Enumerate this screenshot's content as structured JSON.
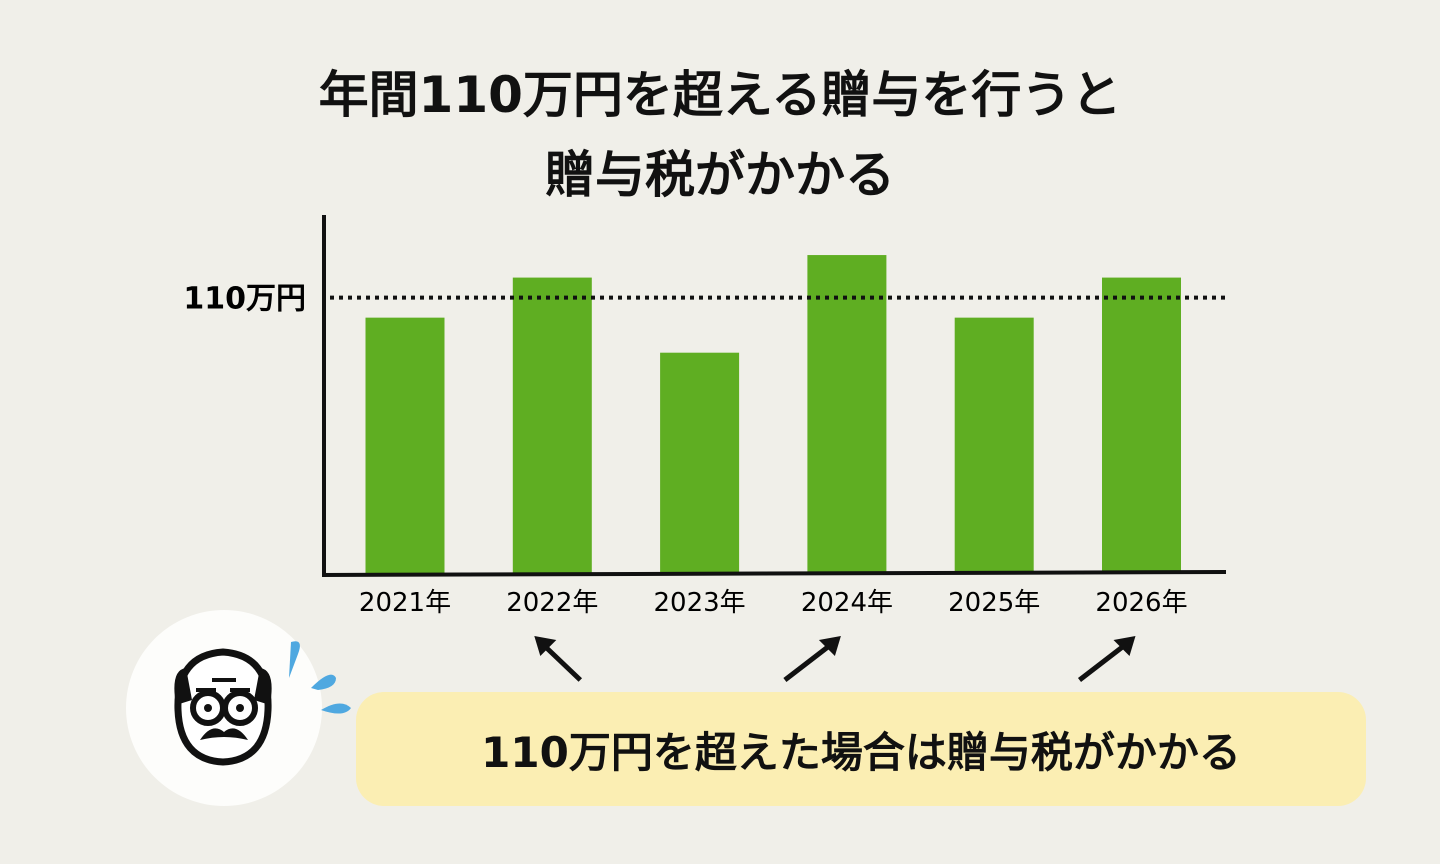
{
  "title": {
    "line1": "年間110万円を超える贈与を行うと",
    "line2": "贈与税がかかる"
  },
  "chart_data": {
    "type": "bar",
    "categories": [
      "2021年",
      "2022年",
      "2023年",
      "2024年",
      "2025年",
      "2026年"
    ],
    "values": [
      102,
      118,
      88,
      127,
      102,
      118
    ],
    "ylim": [
      0,
      143
    ],
    "reference_line": {
      "value": 110,
      "label": "110万円",
      "style": "dotted"
    },
    "highlighted_categories": [
      "2022年",
      "2024年",
      "2026年"
    ],
    "grid": false,
    "colors": {
      "bar": "#5fae22",
      "axis": "#111111",
      "arrow": "#111111"
    }
  },
  "callout": {
    "text": "110万円を超えた場合は贈与税がかかる",
    "background": "#fbeeb3"
  },
  "avatar": {
    "icon": "worried-old-man-icon",
    "sweat_color": "#4fa8e0"
  }
}
